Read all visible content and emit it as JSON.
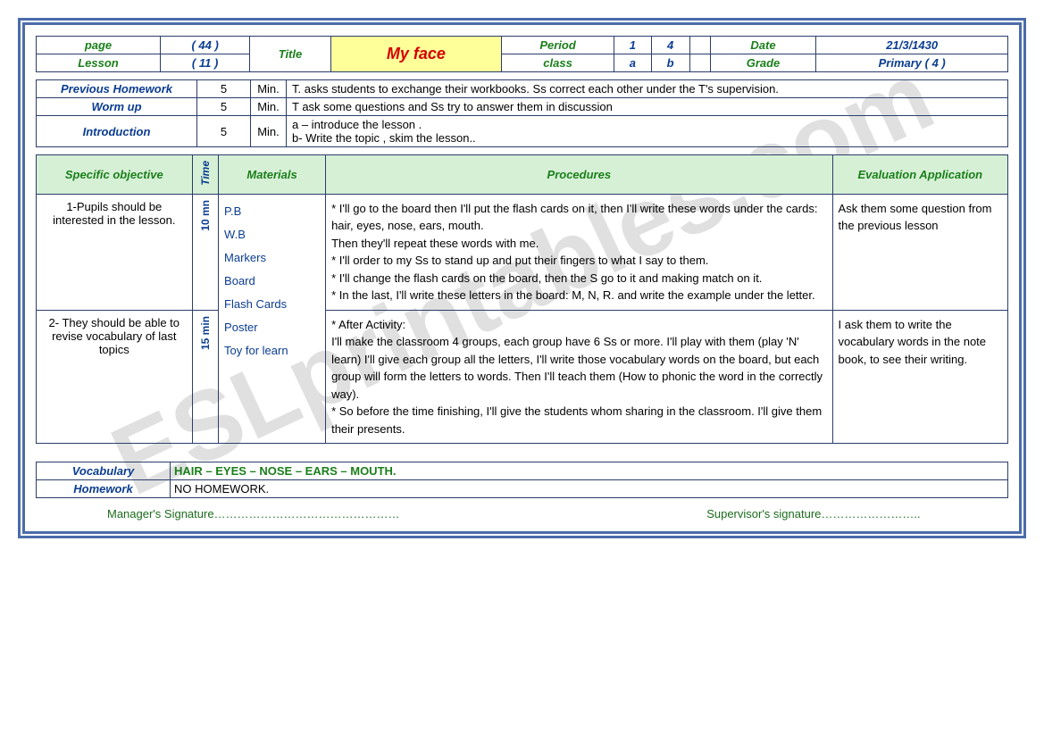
{
  "header": {
    "page_label": "page",
    "page_val": "( 44 )",
    "lesson_label": "Lesson",
    "lesson_val": "( 11 )",
    "title_label": "Title",
    "title_val": "My face",
    "period_label": "Period",
    "period_v1": "1",
    "period_v2": "4",
    "class_label": "class",
    "class_v1": "a",
    "class_v2": "b",
    "date_label": "Date",
    "date_val": "21/3/1430",
    "grade_label": "Grade",
    "grade_val": "Primary ( 4 )"
  },
  "intro": [
    {
      "label": "Previous Homework",
      "min": "5",
      "minlbl": "Min.",
      "text": "T. asks students to exchange their workbooks. Ss correct each other under the T's supervision."
    },
    {
      "label": "Worm up",
      "min": "5",
      "minlbl": "Min.",
      "text": "T ask some questions and Ss try to answer them in discussion"
    },
    {
      "label": "Introduction",
      "min": "5",
      "minlbl": "Min.",
      "text": "a – introduce the lesson .\nb- Write the topic , skim the lesson.."
    }
  ],
  "main_headers": {
    "obj": "Specific objective",
    "time": "Time",
    "mat": "Materials",
    "proc": "Procedures",
    "eval": "Evaluation Application"
  },
  "rows": [
    {
      "obj": "1-Pupils should be interested in the lesson.",
      "time": "10 mn",
      "proc": "* I'll go to the board then I'll put the flash cards on it, then I'll write these words under the cards: hair, eyes, nose, ears, mouth.\n Then they'll repeat these words with me.\n* I'll order to my Ss to stand up and put their fingers to what I say to them.\n* I'll change the flash cards on the board, then the S go to it and making match on it.\n* In the last, I'll write these letters in the board: M, N, R. and write the example under the letter.",
      "eval": "Ask them some question from the previous lesson"
    },
    {
      "obj": "2- They should be able to revise vocabulary of last topics",
      "time": "15 min",
      "proc": "* After Activity:\nI'll make the classroom 4 groups, each group have 6 Ss or more. I'll play with them (play 'N' learn) I'll give each group all the letters, I'll write those vocabulary words on the board, but each group will form the letters to words. Then I'll teach them (How to phonic the word in the correctly way).\n* So before the time finishing, I'll give the students whom sharing in the classroom. I'll give them their presents.",
      "eval": "I ask them to write the vocabulary words in the note book, to see their writing."
    }
  ],
  "materials": "P.B\nW.B\nMarkers\nBoard\nFlash Cards\nPoster\nToy for learn",
  "vocab_label": "Vocabulary",
  "vocab_val": "HAIR – EYES – NOSE – EARS – MOUTH.",
  "hw_label": "Homework",
  "hw_val": "NO HOMEWORK.",
  "sig_mgr": "Manager's Signature…………………………………………",
  "sig_sup": "Supervisor's signature……………………..",
  "colors": {
    "border": "#2a3d6b",
    "frame": "#4b6caa",
    "green": "#1a7f1a",
    "blue": "#0b3d91",
    "red": "#d40000",
    "title_bg": "#ffff99",
    "head_bg": "#d6f0d6"
  }
}
